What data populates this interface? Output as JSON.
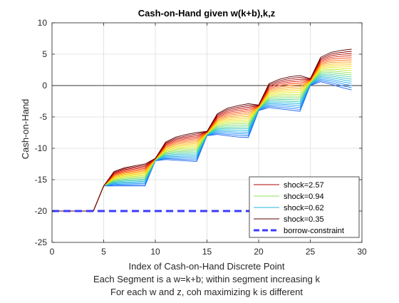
{
  "chart_data": {
    "type": "line",
    "title": "Cash-on-Hand given w(k+b),k,z",
    "xlabel_lines": [
      "Index of Cash-on-Hand Discrete Point",
      "Each Segment is a w=k+b; within segment increasing k",
      "For each w and z, coh maximizing k is different"
    ],
    "ylabel": "Cash-on-Hand",
    "xlim": [
      0,
      30
    ],
    "ylim": [
      -25,
      10
    ],
    "xticks": [
      0,
      5,
      10,
      15,
      20,
      25,
      30
    ],
    "yticks": [
      -25,
      -20,
      -15,
      -10,
      -5,
      0,
      5,
      10
    ],
    "grid": true,
    "zero_line": true,
    "legend": {
      "placement": "bottom-right",
      "entries": [
        {
          "name": "shock=2.57",
          "color": "#b40000",
          "style": "solid"
        },
        {
          "name": "shock=0.94",
          "color": "#8fe05a",
          "style": "solid"
        },
        {
          "name": "shock=0.62",
          "color": "#1fb7e0",
          "style": "solid"
        },
        {
          "name": "shock=0.35",
          "color": "#5a0000",
          "style": "solid"
        },
        {
          "name": "borrow-constraint",
          "color": "#3b3bff",
          "style": "dashed"
        }
      ]
    },
    "series_x": [
      0,
      1,
      2,
      3,
      4,
      5,
      6,
      7,
      8,
      9,
      10,
      11,
      12,
      13,
      14,
      15,
      16,
      17,
      18,
      19,
      20,
      21,
      22,
      23,
      24,
      25,
      26,
      27,
      28,
      29
    ],
    "series_top": [
      -20,
      -20,
      -20,
      -20,
      -20,
      -16,
      -13.7,
      -13.1,
      -12.8,
      -12.5,
      -11.6,
      -9,
      -8.2,
      -7.8,
      -7.5,
      -7.3,
      -4.5,
      -3.6,
      -3.2,
      -2.9,
      -3.1,
      0.3,
      1,
      1.4,
      1.6,
      1.1,
      4.5,
      5.3,
      5.6,
      5.8
    ],
    "series_bottom": [
      -20,
      -20,
      -20,
      -20,
      -20,
      -16,
      -16,
      -16,
      -16,
      -16,
      -12,
      -11.8,
      -11.9,
      -12,
      -12.1,
      -8,
      -7.8,
      -8,
      -8.2,
      -8.3,
      -4,
      -3.5,
      -3.7,
      -3.9,
      -4.1,
      0,
      0.6,
      0.2,
      -0.3,
      -0.7
    ],
    "series_count": 20,
    "colormap": [
      "#5a0000",
      "#b40000",
      "#ff3000",
      "#ff8a00",
      "#ffd000",
      "#d8f020",
      "#8fe05a",
      "#3fd0a0",
      "#1fb7e0",
      "#1e90ff",
      "#1460f0"
    ],
    "borrow_constraint": {
      "x": [
        0,
        20
      ],
      "y": -20
    }
  }
}
